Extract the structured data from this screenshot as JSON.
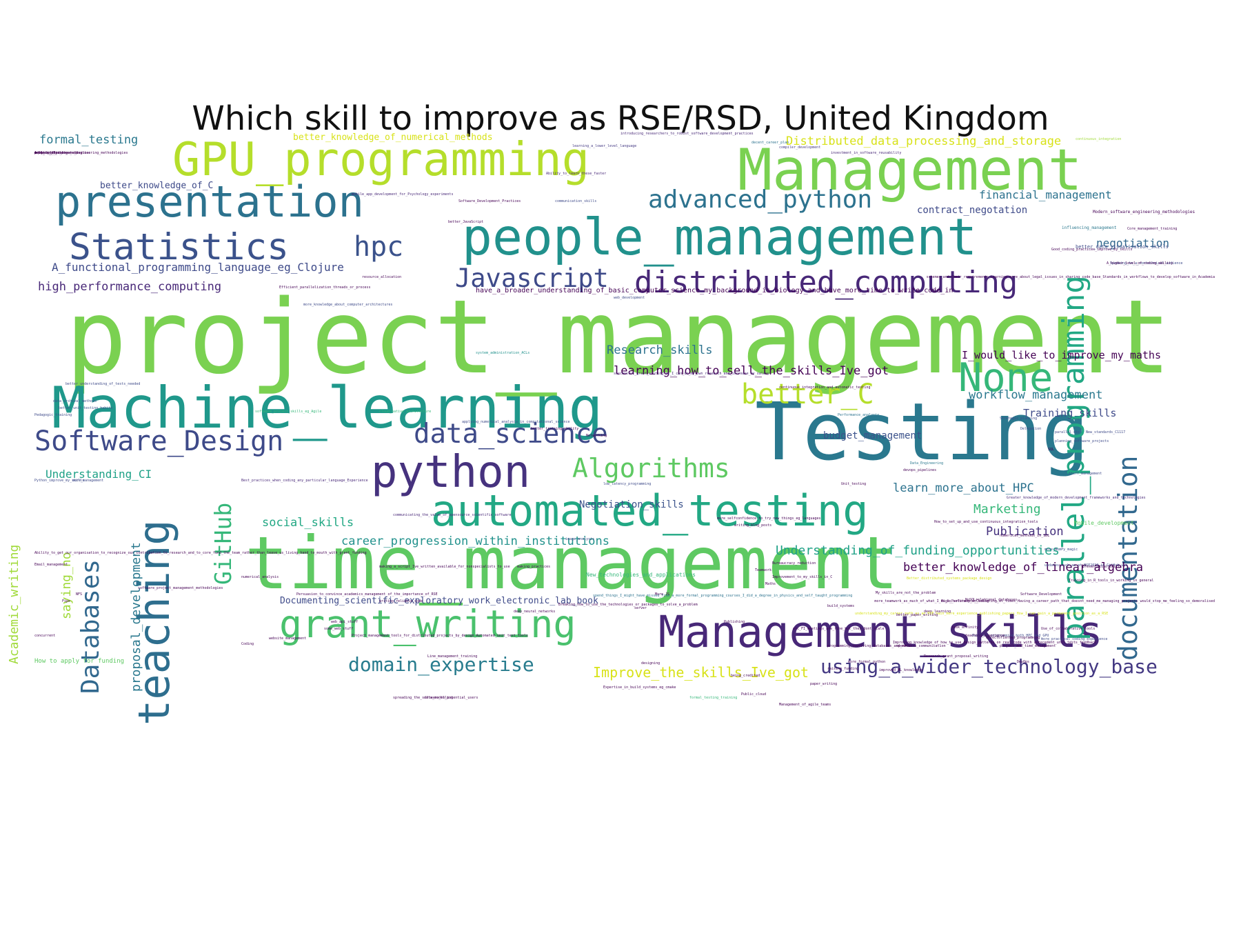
{
  "title": "Which skill to improve as RSE/RSD, United Kingdom",
  "chart_data": {
    "type": "wordcloud",
    "title": "Which skill to improve as RSE/RSD, United Kingdom",
    "colormap": "viridis",
    "words": [
      {
        "text": "project_management",
        "color": "#7ad151"
      },
      {
        "text": "Testing",
        "color": "#2a788e"
      },
      {
        "text": "time_management",
        "color": "#5ec962"
      },
      {
        "text": "Machine_learning",
        "color": "#1f988b"
      },
      {
        "text": "Management",
        "color": "#7ad151"
      },
      {
        "text": "people_management",
        "color": "#21918c"
      },
      {
        "text": "GPU_programming",
        "color": "#b5de2b"
      },
      {
        "text": "Management_skills",
        "color": "#482878"
      },
      {
        "text": "automated_testing",
        "color": "#22a884"
      },
      {
        "text": "presentation",
        "color": "#2c728e"
      },
      {
        "text": "python",
        "color": "#46327e"
      },
      {
        "text": "teaching",
        "color": "#2e6e8e"
      },
      {
        "text": "grant_writing",
        "color": "#4ac16d"
      },
      {
        "text": "Statistics",
        "color": "#3b528b"
      },
      {
        "text": "None",
        "color": "#35b779"
      },
      {
        "text": "parallel_programming",
        "color": "#22a884"
      },
      {
        "text": "distributed_computing",
        "color": "#482878"
      },
      {
        "text": "advanced_python",
        "color": "#2c728e"
      },
      {
        "text": "Algorithms",
        "color": "#5ec962"
      },
      {
        "text": "Databases",
        "color": "#31688e"
      },
      {
        "text": "data_science",
        "color": "#3e4a89"
      },
      {
        "text": "Software_Design",
        "color": "#3e4a89"
      },
      {
        "text": "better_C",
        "color": "#b5de2b"
      },
      {
        "text": "GitHub",
        "color": "#35b779"
      },
      {
        "text": "hpc",
        "color": "#3b528b"
      },
      {
        "text": "documentation",
        "color": "#31688e"
      },
      {
        "text": "Javascript",
        "color": "#3e4a89"
      },
      {
        "text": "domain_expertise",
        "color": "#287c8e"
      },
      {
        "text": "using_a_wider_technology_base",
        "color": "#443983"
      },
      {
        "text": "Improve_the_skills_Ive_got",
        "color": "#d8e219"
      },
      {
        "text": "Academic_writing",
        "color": "#a0da39"
      },
      {
        "text": "proposal_development",
        "color": "#2a788e"
      },
      {
        "text": "saying_no",
        "color": "#a0da39"
      },
      {
        "text": "Research_skills",
        "color": "#2c728e"
      },
      {
        "text": "learning_how_to_sell_the_skills_Ive_got",
        "color": "#440154"
      },
      {
        "text": "I_would_like_to_improve_my_maths",
        "color": "#440154"
      },
      {
        "text": "workflow_management",
        "color": "#2a788e"
      },
      {
        "text": "Training_skills",
        "color": "#3e4a89"
      },
      {
        "text": "budget_management",
        "color": "#3b528b"
      },
      {
        "text": "learn_more_about_HPC",
        "color": "#2c728e"
      },
      {
        "text": "Negotiation_skills",
        "color": "#3b528b"
      },
      {
        "text": "Marketing",
        "color": "#35b779"
      },
      {
        "text": "Publication",
        "color": "#46327e"
      },
      {
        "text": "Understanding_of_funding_opportunities",
        "color": "#1fa187"
      },
      {
        "text": "better_knowledge_of_linear_algebra",
        "color": "#440154"
      },
      {
        "text": "career_progression_within_institutions",
        "color": "#21918c"
      },
      {
        "text": "social_skills",
        "color": "#22a884"
      },
      {
        "text": "Understanding_CI",
        "color": "#1fa187"
      },
      {
        "text": "Documenting_scientific_exploratory_work_electronic_lab_book",
        "color": "#3e4a89"
      },
      {
        "text": "high_performance_computing",
        "color": "#482878"
      },
      {
        "text": "A_functional_programming_language_eg_Clojure",
        "color": "#3e4a89"
      },
      {
        "text": "formal_testing",
        "color": "#2a788e"
      },
      {
        "text": "better_knowledge_of_C",
        "color": "#3e4a89"
      },
      {
        "text": "better_knowledge_of_numerical_methods",
        "color": "#d8e219"
      },
      {
        "text": "Distributed_data_processing_and_storage",
        "color": "#d8e219"
      },
      {
        "text": "financial_management",
        "color": "#2c728e"
      },
      {
        "text": "contract_negotation",
        "color": "#3e4a89"
      },
      {
        "text": "negotiation",
        "color": "#31688e"
      },
      {
        "text": "have_a_broader_understanding_of_basic_computer_science_my_background_is_biology_and_have_more_time_to_write_code_in",
        "color": "#440154"
      },
      {
        "text": "How to apply for funding",
        "color": "#5ec962"
      },
      {
        "text": "Mobile_development",
        "color": "#5ec962"
      },
      {
        "text": "New_technologies_and_applications",
        "color": "#35b779"
      },
      {
        "text": "better_data_visualisation_skills",
        "color": "#3e4a89"
      },
      {
        "text": "influencing_management",
        "color": "#2a788e"
      },
      {
        "text": "Modern_software_engineering_methodologies",
        "color": "#440154"
      },
      {
        "text": "Speaking_to_a_nontechnical_audience",
        "color": "#3e4a89"
      },
      {
        "text": "introducing_researchers_to_robust_software_development_practices",
        "color": "#482878"
      },
      {
        "text": "learning_a_lower_level_language",
        "color": "#443983"
      },
      {
        "text": "decent_career_plan",
        "color": "#2c728e"
      },
      {
        "text": "investment_in_software_reusability",
        "color": "#482878"
      },
      {
        "text": "compiler_development",
        "color": "#443983"
      },
      {
        "text": "continuous_integration",
        "color": "#a0da39"
      },
      {
        "text": "Ability_to_learn_these_faster",
        "color": "#482878"
      },
      {
        "text": "communication_skills",
        "color": "#3e4a89"
      },
      {
        "text": "Software_Development_Practices",
        "color": "#440154"
      },
      {
        "text": "mobile_app_development_for_Psychology_experiments",
        "color": "#482878"
      },
      {
        "text": "web_development",
        "color": "#3e4a89"
      },
      {
        "text": "Efficient_parallelization_threads_or_process",
        "color": "#440154"
      },
      {
        "text": "more_knowledge_about_computer_architectures",
        "color": "#3e4a89"
      },
      {
        "text": "system_administration_ACLs",
        "color": "#21918c"
      },
      {
        "text": "better_understanding_of_tests_needed",
        "color": "#3e4a89"
      },
      {
        "text": "data_archival_methods",
        "color": "#3b528b"
      },
      {
        "text": "better_unit_testing_habits",
        "color": "#3b528b"
      },
      {
        "text": "Pedagogic_training",
        "color": "#3e4a89"
      },
      {
        "text": "software_project_skills_eg_Agile",
        "color": "#35b779"
      },
      {
        "text": "cloud_native_architecture",
        "color": "#35b779"
      },
      {
        "text": "applying_numerical_analysis_in_computational_science",
        "color": "#3e4a89"
      },
      {
        "text": "Performance_analysis",
        "color": "#2c728e"
      },
      {
        "text": "Strategic_planning",
        "color": "#3e4a89"
      },
      {
        "text": "Delegation",
        "color": "#3e4a89"
      },
      {
        "text": "parallel_etc",
        "color": "#3e4a89"
      },
      {
        "text": "New_standards_C1117",
        "color": "#3e4a89"
      },
      {
        "text": "Data_Engineering",
        "color": "#2a788e"
      },
      {
        "text": "Python_improve_my_skills",
        "color": "#3e4a89"
      },
      {
        "text": "more_management",
        "color": "#3e4a89"
      },
      {
        "text": "Best_practices_when_coding_any_particular_language_Experience",
        "color": "#482878"
      },
      {
        "text": "Staff_management",
        "color": "#3e4a89"
      },
      {
        "text": "planning_software_projects",
        "color": "#3e4a89"
      },
      {
        "text": "low_latency_programming",
        "color": "#3e4a89"
      },
      {
        "text": "Greater_knowledge_of_modern_development_frameworks_and_technologies",
        "color": "#482878"
      },
      {
        "text": "communicating_the_value_of_opensource_scientific_software",
        "color": "#482878"
      },
      {
        "text": "more_selfconfidence_to_try_new_things_eg_languages",
        "color": "#440154"
      },
      {
        "text": "writing_blog_posts",
        "color": "#440154"
      },
      {
        "text": "image_analysis",
        "color": "#3e4a89"
      },
      {
        "text": "more_NumPy_magic",
        "color": "#3e4a89"
      },
      {
        "text": "updates_such_as_at_RSE2018_in_GitHub_use",
        "color": "#3e4a89"
      },
      {
        "text": "numerical_methods_in_SDL",
        "color": "#440154"
      },
      {
        "text": "Bureaucracy_reduction",
        "color": "#440154"
      },
      {
        "text": "Teamwork",
        "color": "#440154"
      },
      {
        "text": "Email_management",
        "color": "#440154"
      },
      {
        "text": "numerical_analysis",
        "color": "#440154"
      },
      {
        "text": "Persuasion_to_convince_academics_management_of_the_importance_of_RSE",
        "color": "#440154"
      },
      {
        "text": "software_project_management_methodologies",
        "color": "#440154"
      },
      {
        "text": "Software_Development",
        "color": "#440154"
      },
      {
        "text": "Parallel_programming_both_HPC_and_GPU",
        "color": "#3e4a89"
      },
      {
        "text": "My_skills_are_not_the_problem",
        "color": "#440154"
      },
      {
        "text": "deep_learning",
        "color": "#440154"
      },
      {
        "text": "making_a_script_Ive_written_available_for_nonspecialists_to_use",
        "color": "#440154"
      },
      {
        "text": "DevOps",
        "color": "#440154"
      },
      {
        "text": "website_management",
        "color": "#440154"
      },
      {
        "text": "objectoriented_programming",
        "color": "#440154"
      },
      {
        "text": "Improving_knowledge_of_how_to_use_design_patterns_on_real_code_with_antecedent_unit_tests_feedback",
        "color": "#440154"
      },
      {
        "text": "Research_grant_proposal_writing",
        "color": "#440154"
      },
      {
        "text": "High_Performance_Coding",
        "color": "#440154"
      },
      {
        "text": "paper_writing",
        "color": "#440154"
      },
      {
        "text": "being_credited",
        "color": "#440154"
      },
      {
        "text": "Public_cloud",
        "color": "#440154"
      },
      {
        "text": "Expertise_in_build_systems_eg_cmake",
        "color": "#440154"
      },
      {
        "text": "raising_funding",
        "color": "#440154"
      },
      {
        "text": "Coding",
        "color": "#440154"
      },
      {
        "text": "improved_ML_knowledge",
        "color": "#440154"
      },
      {
        "text": "openACC",
        "color": "#440154"
      },
      {
        "text": "more_formal_python",
        "color": "#440154"
      },
      {
        "text": "Unit_testing",
        "color": "#440154"
      },
      {
        "text": "teaching_experience",
        "color": "#440154"
      },
      {
        "text": "Publishing",
        "color": "#440154"
      },
      {
        "text": "Maths",
        "color": "#440154"
      },
      {
        "text": "build_systems",
        "color": "#440154"
      },
      {
        "text": "task_affinity",
        "color": "#440154"
      },
      {
        "text": "designing",
        "color": "#440154"
      },
      {
        "text": "schemes_and_their_requirements_Learning_more_about_legal_issues_in_sharing_code_base_Standards_in_workflows_to_develop_software_in_Academia",
        "color": "#440154"
      },
      {
        "text": "Good_coding_practices_improve_my_skills",
        "color": "#440154"
      },
      {
        "text": "continuous_integration_and_automatic_testing",
        "color": "#440154"
      },
      {
        "text": "A_higher_level_of_coding_ability",
        "color": "#440154"
      },
      {
        "text": "Core_management_training",
        "color": "#440154"
      },
      {
        "text": "Ability_to_get_our_organisation_to_recognize_our_contribution_to_research_and_to_core_fund_the_team_rather_than_leave_us_living_hand_to_mouth_with_grant_funding",
        "color": "#440154"
      },
      {
        "text": "How_to_set_up_and_use_continuous_integration_tools",
        "color": "#440154"
      },
      {
        "text": "deep_neural_networks",
        "color": "#440154"
      },
      {
        "text": "Better_distributed_systems_package_design",
        "color": "#d8e219"
      },
      {
        "text": "understanding_my_career_path_as_an_RSE_Gain_more_experience_publishing_papers_How_I_can_gain_a_permanent_position_as_a_RSE",
        "color": "#d8e219"
      },
      {
        "text": "spend_things_I_might_have_missed_from_a_more_formal_programming_courses_I_did_a_degree_in_physics_and_self_taught_programming",
        "color": "#2c728e"
      },
      {
        "text": "successful_grant_writing_as_I_can_do_my_own_research_and_increase_my_salary",
        "color": "#482878"
      },
      {
        "text": "more_teamwork_as_much_of_what_I_do_is_solitary_so_isolating_at_times_Having_a_career_path_that_doesnt_need_me_managing_projects_would_stop_me_feeling_so_demoralised",
        "color": "#440154"
      },
      {
        "text": "writing_reliable_code",
        "color": "#440154"
      },
      {
        "text": "better_paper_writing",
        "color": "#440154"
      },
      {
        "text": "Improvement_to_my_skills_in_C",
        "color": "#440154"
      },
      {
        "text": "presentation_skills",
        "color": "#440154"
      },
      {
        "text": "NoSQLrelational_databases",
        "color": "#440154"
      },
      {
        "text": "Management_of_agile_teams",
        "color": "#440154"
      },
      {
        "text": "etc_FI_meetings_are_fine_but_they_dont_scale",
        "color": "#440154"
      },
      {
        "text": "more_practical_coding_experience",
        "color": "#3e4a89"
      },
      {
        "text": "programming_involving_databases_and_network_communication",
        "color": "#440154"
      },
      {
        "text": "project_and_time_management",
        "color": "#440154"
      },
      {
        "text": "formal_testing_training",
        "color": "#35b779"
      },
      {
        "text": "making_practices",
        "color": "#440154"
      },
      {
        "text": "concurrent",
        "color": "#440154"
      },
      {
        "text": "server",
        "color": "#440154"
      },
      {
        "text": "More_JS",
        "color": "#440154"
      },
      {
        "text": "Fips",
        "color": "#440154"
      },
      {
        "text": "NFS",
        "color": "#440154"
      },
      {
        "text": "Breaking_how_to_use_the_technologies_or_packages_to_solve_a_problem",
        "color": "#440154"
      },
      {
        "text": "spreading_the_software_to_potential_users",
        "color": "#440154"
      },
      {
        "text": "Project_management_tools_for_distributed_projects_by_design_Automated_unit_test_tools",
        "color": "#440154"
      },
      {
        "text": "data_modelling",
        "color": "#440154"
      },
      {
        "text": "Training_in_R_tools_in_working_in_general",
        "color": "#440154"
      },
      {
        "text": "Use_of_collaborative_tools",
        "color": "#440154"
      },
      {
        "text": "resource_allocation",
        "color": "#440154"
      },
      {
        "text": "Networking",
        "color": "#440154"
      },
      {
        "text": "SQL",
        "color": "#440154"
      },
      {
        "text": "devops_pipelines",
        "color": "#440154"
      },
      {
        "text": "Line_management_training",
        "color": "#440154"
      },
      {
        "text": "web_api_stuff",
        "color": "#440154"
      },
      {
        "text": "some_web_stuff",
        "color": "#440154"
      },
      {
        "text": "better_training_ability",
        "color": "#440154"
      },
      {
        "text": "better_JavaScript",
        "color": "#440154"
      },
      {
        "text": "rules",
        "color": "#440154"
      },
      {
        "text": "sql",
        "color": "#440154"
      },
      {
        "text": "more_tests",
        "color": "#440154"
      },
      {
        "text": "work",
        "color": "#440154"
      },
      {
        "text": "Advanced_Python_stuff",
        "color": "#440154"
      },
      {
        "text": "routine_data_processing",
        "color": "#440154"
      },
      {
        "text": "meaning_of_software_engineering_methodologies",
        "color": "#440154"
      },
      {
        "text": "work_data_science_expertise",
        "color": "#440154"
      },
      {
        "text": "project_planning",
        "color": "#440154"
      }
    ]
  }
}
